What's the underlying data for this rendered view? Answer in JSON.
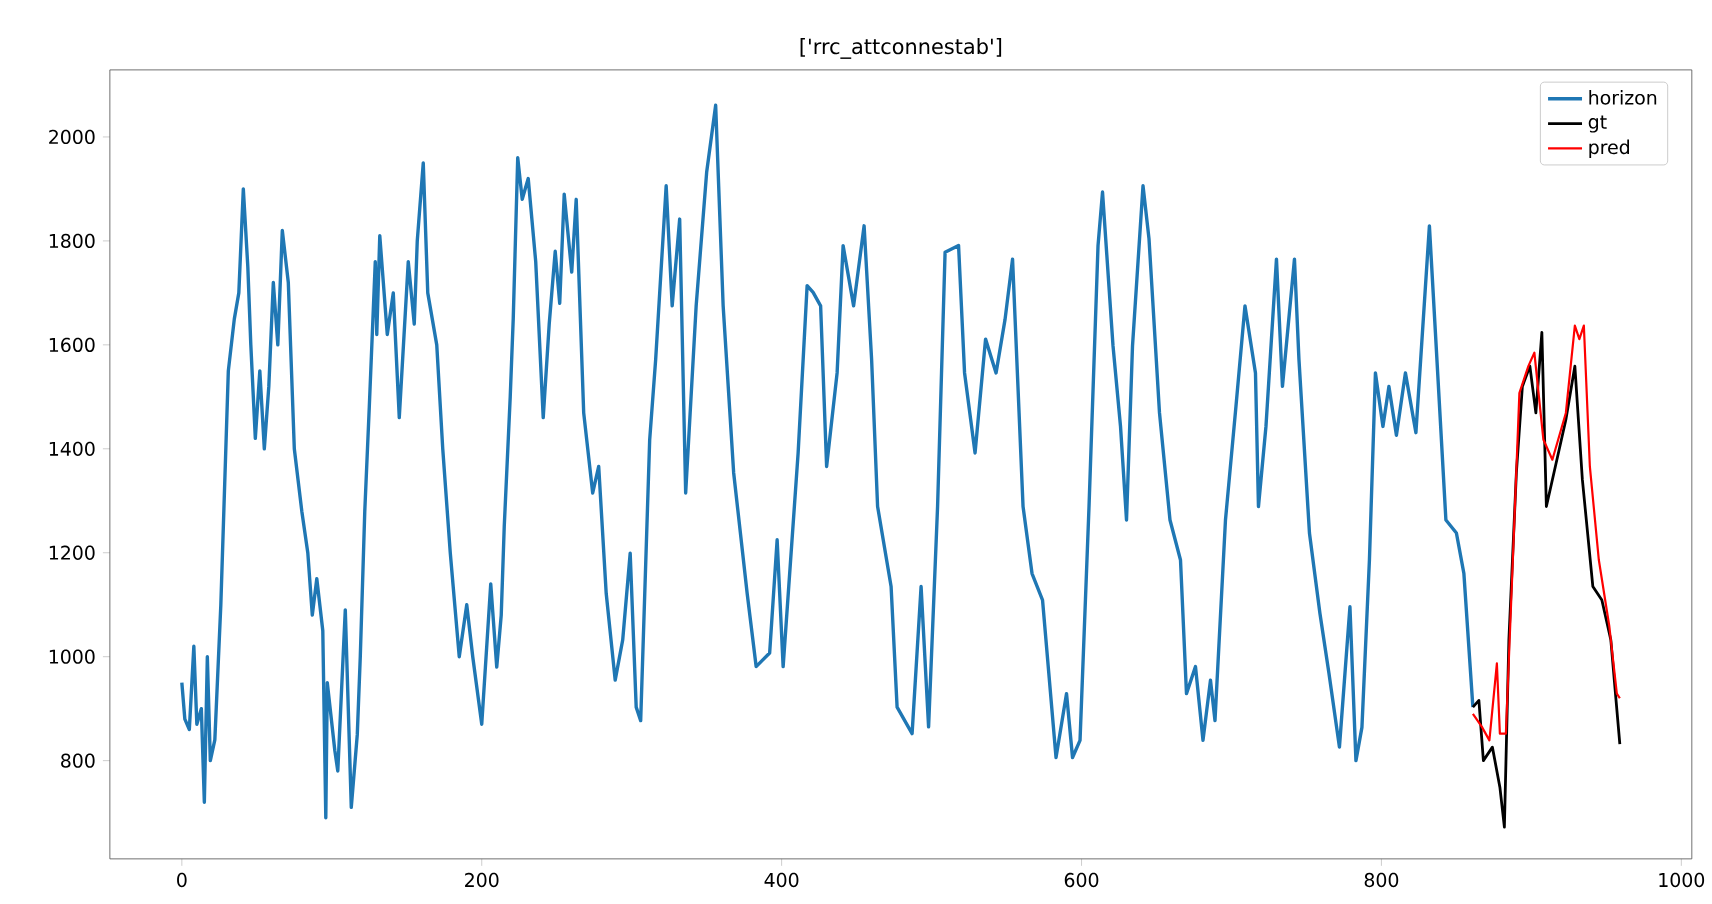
{
  "chart_data": {
    "type": "line",
    "title": "['rrc_attconnestab']",
    "xlim": [
      -48,
      1007
    ],
    "ylim": [
      611,
      2129
    ],
    "xticks": [
      0,
      200,
      400,
      600,
      800,
      1000
    ],
    "yticks": [
      800,
      1000,
      1200,
      1400,
      1600,
      1800,
      2000
    ],
    "legend": "top right",
    "grid": false,
    "series": [
      {
        "name": "horizon",
        "color": "#1f77b4",
        "x": [
          0,
          2,
          5,
          8,
          10,
          13,
          15,
          17,
          19,
          22,
          26,
          31,
          35,
          38,
          41,
          44,
          46,
          49,
          52,
          55,
          58,
          61,
          64,
          67,
          71,
          75,
          80,
          84,
          87,
          90,
          94,
          96,
          97,
          102,
          104,
          109,
          113,
          117,
          119,
          122,
          125,
          129,
          130,
          132,
          137,
          141,
          145,
          151,
          155,
          157,
          161,
          164,
          170,
          174,
          179,
          185,
          190,
          194,
          200,
          206,
          210,
          213,
          215,
          219,
          221,
          224,
          227,
          231,
          236,
          241,
          245,
          249,
          252,
          255,
          260,
          263,
          268,
          274,
          278,
          283,
          289,
          294,
          299,
          303,
          306,
          312,
          316,
          323,
          327,
          332,
          336,
          343,
          350,
          356,
          361,
          368,
          377,
          383,
          392,
          397,
          401,
          411,
          417,
          421,
          426,
          430,
          437,
          441,
          448,
          455,
          460,
          464,
          473,
          477,
          487,
          493,
          498,
          504,
          509,
          518,
          522,
          529,
          536,
          543,
          549,
          554,
          561,
          567,
          574,
          583,
          590,
          594,
          599,
          605,
          611,
          614,
          621,
          626,
          630,
          634,
          641,
          645,
          652,
          659,
          666,
          670,
          676,
          681,
          686,
          689,
          696,
          703,
          709,
          716,
          718,
          723,
          730,
          734,
          742,
          745,
          752,
          759,
          765,
          772,
          779,
          783,
          787,
          792,
          796,
          801,
          805,
          810,
          816,
          823,
          832,
          836,
          843,
          850,
          855,
          861
        ],
        "values": [
          950,
          880,
          860,
          1020,
          870,
          900,
          720,
          1000,
          800,
          840,
          1100,
          1550,
          1650,
          1700,
          1900,
          1750,
          1600,
          1420,
          1550,
          1400,
          1520,
          1720,
          1600,
          1820,
          1720,
          1400,
          1280,
          1200,
          1080,
          1150,
          1050,
          690,
          950,
          820,
          780,
          1090,
          710,
          850,
          1000,
          1280,
          1480,
          1760,
          1620,
          1810,
          1620,
          1700,
          1460,
          1760,
          1640,
          1800,
          1950,
          1700,
          1600,
          1400,
          1200,
          1000,
          1100,
          1000,
          870,
          1140,
          980,
          1080,
          1250,
          1500,
          1650,
          1960,
          1880,
          1920,
          1760,
          1460,
          1640,
          1780,
          1680,
          1890,
          1740,
          1880,
          1469,
          1315,
          1366,
          1122,
          955,
          1032,
          1199,
          903,
          877,
          1417,
          1572,
          1906,
          1675,
          1842,
          1315,
          1675,
          1932,
          2061,
          1675,
          1354,
          1122,
          981,
          1007,
          1225,
          981,
          1392,
          1714,
          1701,
          1675,
          1366,
          1546,
          1791,
          1675,
          1829,
          1572,
          1289,
          1135,
          903,
          852,
          1135,
          865,
          1289,
          1778,
          1791,
          1546,
          1392,
          1611,
          1546,
          1649,
          1765,
          1289,
          1160,
          1109,
          806,
          929,
          806,
          839,
          1289,
          1791,
          1894,
          1598,
          1443,
          1263,
          1598,
          1906,
          1804,
          1469,
          1263,
          1186,
          929,
          981,
          839,
          955,
          877,
          1263,
          1482,
          1675,
          1546,
          1289,
          1443,
          1765,
          1520,
          1765,
          1572,
          1238,
          1083,
          968,
          826,
          1096,
          800,
          864,
          1186,
          1546,
          1443,
          1520,
          1426,
          1546,
          1431,
          1829,
          1624,
          1263,
          1238,
          1160,
          903
        ]
      },
      {
        "name": "gt",
        "color": "#000000",
        "x": [
          861,
          865,
          868,
          874,
          879,
          882,
          885,
          890,
          894,
          899,
          903,
          907,
          910,
          916,
          923,
          929,
          934,
          941,
          947,
          953,
          959
        ],
        "values": [
          903,
          916,
          800,
          826,
          749,
          672,
          1032,
          1354,
          1520,
          1559,
          1469,
          1624,
          1289,
          1366,
          1456,
          1559,
          1341,
          1135,
          1109,
          1032,
          832
        ]
      },
      {
        "name": "pred",
        "color": "#ff0000",
        "x": [
          861,
          867,
          872,
          877,
          879,
          883,
          888,
          892,
          898,
          902,
          908,
          914,
          923,
          929,
          932,
          935,
          939,
          945,
          952,
          957,
          959
        ],
        "values": [
          890,
          865,
          839,
          987,
          852,
          852,
          1212,
          1507,
          1559,
          1585,
          1418,
          1379,
          1469,
          1637,
          1611,
          1637,
          1366,
          1186,
          1058,
          929,
          920
        ]
      }
    ]
  }
}
